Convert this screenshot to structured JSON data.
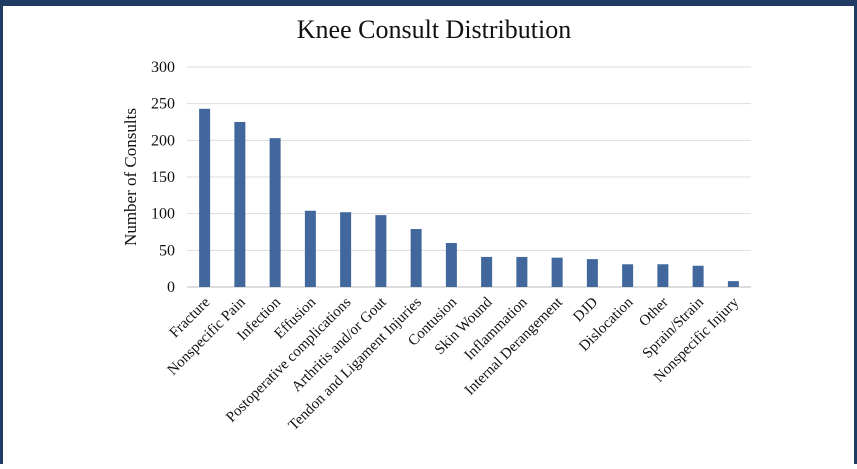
{
  "chart_data": {
    "type": "bar",
    "title": "Knee Consult Distribution",
    "y_label": "Number of Consults",
    "categories": [
      "Fracture",
      "Nonspecific Pain",
      "Infection",
      "Effusion",
      "Postoperative complications",
      "Arthritis and/or Gout",
      "Tendon and Ligament Injuries",
      "Contusion",
      "Skin Wound",
      "Inflammation",
      "Internal Derangement",
      "DJD",
      "Dislocation",
      "Other",
      "Sprain/Strain",
      "Nonspecific Injury"
    ],
    "values": [
      243,
      225,
      203,
      104,
      102,
      98,
      79,
      60,
      41,
      41,
      40,
      38,
      31,
      31,
      29,
      8
    ],
    "color": "#41679c",
    "ylim": [
      0,
      300
    ],
    "yticks": [
      0,
      50,
      100,
      150,
      200,
      250,
      300
    ],
    "grid": true
  }
}
